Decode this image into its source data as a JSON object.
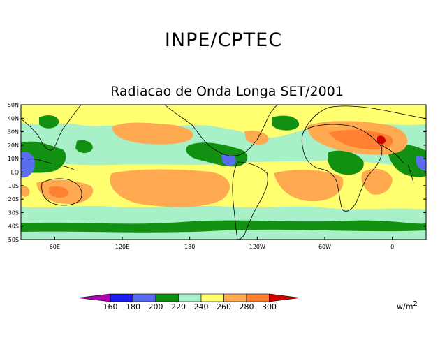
{
  "header": {
    "title": "INPE/CPTEC"
  },
  "map": {
    "title": "Radiacao de Onda Longa SET/2001",
    "lat_labels": [
      "50N",
      "40N",
      "30N",
      "20N",
      "10N",
      "EQ",
      "10S",
      "20S",
      "30S",
      "40S",
      "50S"
    ],
    "lon_labels": [
      "120E",
      "180",
      "120W",
      "60W",
      "0",
      "60E"
    ],
    "lon_values": [
      120,
      180,
      -120,
      -60,
      0,
      60
    ],
    "lat_range": [
      -50,
      50
    ],
    "lon_range": [
      30,
      390
    ]
  },
  "colorbar": {
    "ticks": [
      "160",
      "180",
      "200",
      "220",
      "240",
      "260",
      "280",
      "300"
    ],
    "colors": [
      "#b000b0",
      "#1e1ef0",
      "#5a6cf0",
      "#129012",
      "#a8f0c8",
      "#ffff70",
      "#ffaa50",
      "#ff8030",
      "#d00000"
    ],
    "unit_base": "w/m",
    "unit_exp": "2"
  },
  "palette": {
    "water": "#a8f0c8",
    "green": "#129012",
    "yellow": "#ffff70",
    "light_orange": "#ffaa50",
    "orange": "#ff8030",
    "blue": "#5a6cf0",
    "red": "#d00000"
  }
}
